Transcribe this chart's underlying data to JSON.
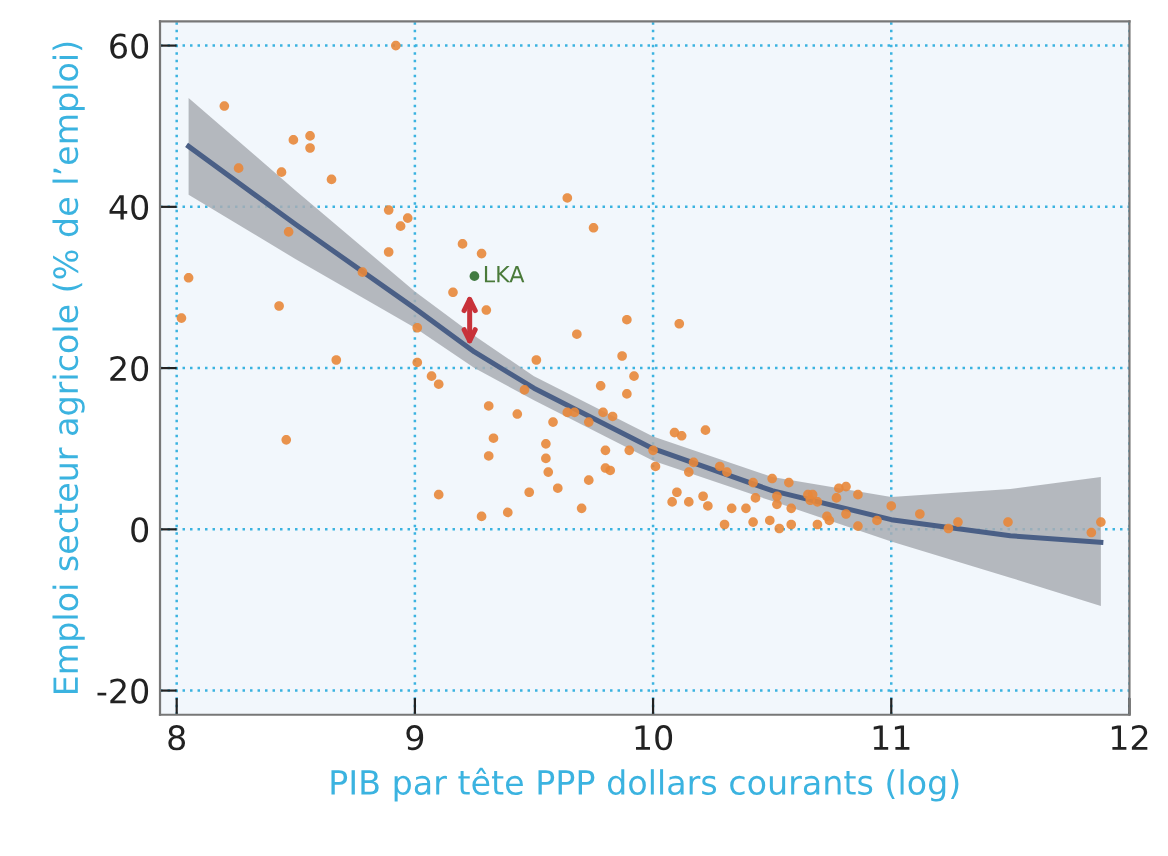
{
  "chart_data": {
    "type": "scatter",
    "xlabel": "PIB par tête PPP dollars courants (log)",
    "ylabel": "Emploi secteur agricole (% de l’emploi)",
    "xlim": [
      7.93,
      12.0
    ],
    "ylim": [
      -23,
      63
    ],
    "xticks": [
      8,
      9,
      10,
      11,
      12
    ],
    "yticks": [
      -20,
      0,
      20,
      40,
      60
    ],
    "grid": true,
    "marker": "circle",
    "annotations": [
      {
        "text": "LKA",
        "x": 9.25,
        "y": 31.4
      }
    ],
    "series": [
      {
        "type": "line",
        "marker": "none",
        "color": "#4a5f86",
        "x": [
          8.05,
          8.5,
          9.0,
          9.25,
          9.5,
          10.0,
          10.5,
          11.0,
          11.5,
          11.88
        ],
        "values": [
          47.5,
          37.8,
          27.4,
          22,
          17.5,
          10,
          4.8,
          1.2,
          -0.8,
          -1.6
        ],
        "upper": [
          53.5,
          42,
          29.5,
          24,
          19,
          11.5,
          6.5,
          4,
          5,
          6.5
        ],
        "lower": [
          41.5,
          33.5,
          25,
          20,
          16,
          8.5,
          3.5,
          -1.5,
          -6,
          -9.5
        ]
      },
      {
        "color": "#e8873a",
        "x": [
          8.02,
          8.05,
          8.2,
          8.26,
          8.49,
          8.56,
          8.56,
          8.44,
          8.65,
          8.89,
          8.97,
          8.94,
          8.89,
          9.2,
          9.28,
          9.16,
          9.3,
          8.92,
          8.47,
          8.78,
          8.43,
          8.67,
          9.01,
          9.01,
          9.07,
          9.1,
          8.46,
          9.31,
          9.33,
          9.31,
          9.1,
          9.28,
          9.39,
          9.64,
          9.75,
          9.89,
          10.11,
          9.68,
          9.51,
          9.87,
          9.92,
          9.78,
          9.89,
          9.46,
          9.43,
          9.58,
          9.64,
          9.67,
          9.79,
          9.83,
          9.73,
          9.55,
          9.8,
          9.9,
          9.55,
          9.56,
          9.8,
          9.82,
          10.0,
          10.09,
          10.12,
          10.22,
          10.01,
          10.17,
          10.15,
          10.28,
          10.31,
          10.42,
          10.5,
          10.57,
          9.73,
          9.6,
          9.48,
          9.7,
          10.1,
          10.08,
          10.15,
          10.21,
          10.23,
          10.33,
          10.39,
          10.43,
          10.52,
          10.52,
          10.3,
          10.42,
          10.49,
          10.53,
          10.58,
          10.58,
          10.65,
          10.67,
          10.66,
          10.69,
          10.73,
          10.74,
          10.78,
          10.69,
          10.81,
          10.86,
          10.77,
          10.81,
          10.86,
          10.94,
          11.0,
          11.12,
          11.24,
          11.28,
          11.49,
          11.84,
          11.88
        ],
        "values": [
          26.2,
          31.2,
          52.5,
          44.8,
          48.3,
          48.8,
          47.3,
          44.3,
          43.4,
          39.6,
          38.6,
          37.6,
          34.4,
          35.4,
          34.2,
          29.4,
          27.2,
          60.0,
          36.9,
          31.9,
          27.7,
          21.0,
          25.0,
          20.7,
          19.0,
          18.0,
          11.1,
          15.3,
          11.3,
          9.1,
          4.3,
          1.6,
          2.1,
          41.1,
          37.4,
          26.0,
          25.5,
          24.2,
          21.0,
          21.5,
          19.0,
          17.8,
          16.8,
          17.3,
          14.3,
          13.3,
          14.5,
          14.5,
          14.5,
          14.0,
          13.3,
          10.6,
          9.8,
          9.8,
          8.8,
          7.1,
          7.6,
          7.3,
          9.8,
          12.0,
          11.6,
          12.3,
          7.8,
          8.3,
          7.1,
          7.8,
          7.1,
          5.8,
          6.3,
          5.8,
          6.1,
          5.1,
          4.6,
          2.6,
          4.6,
          3.4,
          3.4,
          4.1,
          2.9,
          2.6,
          2.6,
          3.9,
          4.1,
          3.1,
          0.6,
          0.9,
          1.1,
          0.1,
          0.6,
          2.6,
          4.3,
          4.3,
          3.6,
          0.6,
          1.6,
          1.1,
          5.1,
          3.4,
          5.3,
          4.3,
          3.9,
          1.9,
          0.4,
          1.1,
          2.9,
          1.9,
          0.1,
          0.9,
          0.9,
          -0.4,
          0.9
        ]
      },
      {
        "color": "#2e6b2e",
        "x": [
          9.25
        ],
        "values": [
          31.4
        ]
      }
    ]
  }
}
